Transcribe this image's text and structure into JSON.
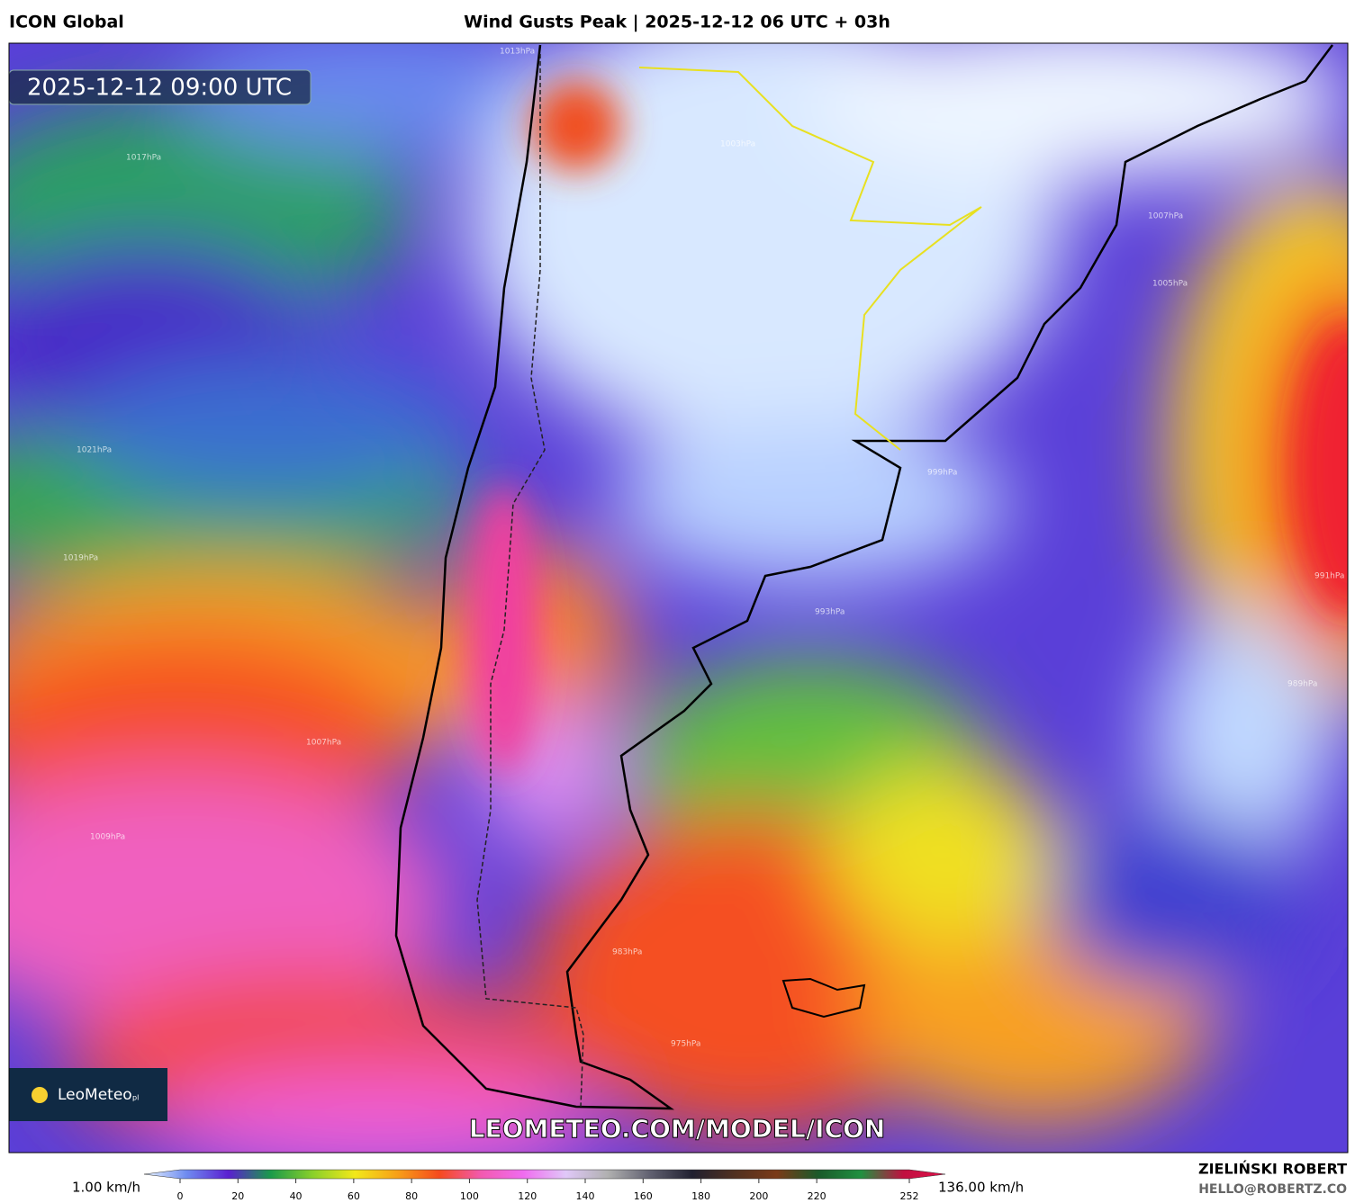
{
  "header": {
    "model": "ICON Global",
    "title": "Wind Gusts Peak | 2025-12-12 06 UTC + 03h"
  },
  "map": {
    "timestamp": "2025-12-12 09:00 UTC",
    "watermark": "LEOMETEO.COM/MODEL/ICON",
    "logo": "LeoMeteo",
    "logo_suffix": "pl",
    "isobar_labels": [
      "1013hPa",
      "1017hPa",
      "1021hPa",
      "1019hPa",
      "1007hPa",
      "1005hPa",
      "1003hPa",
      "999hPa",
      "993hPa",
      "991hPa",
      "989hPa",
      "983hPa",
      "975hPa",
      "1007hPa",
      "1009hPa"
    ]
  },
  "colorbar": {
    "min_label": "1.00 km/h",
    "max_label": "136.00 km/h",
    "ticks": [
      0,
      20,
      40,
      60,
      80,
      100,
      120,
      140,
      160,
      180,
      200,
      220,
      252
    ],
    "colors": [
      "#e8f4ff",
      "#6f8cf0",
      "#5a1fd0",
      "#1a9a4a",
      "#8ad02a",
      "#f2e81a",
      "#f7a018",
      "#f54a1e",
      "#f25ab0",
      "#f06cf0",
      "#e0c8f8",
      "#b0b0b0",
      "#606070",
      "#202030",
      "#503020",
      "#7a3a18",
      "#1a5a2a",
      "#209040",
      "#c01040",
      "#e0104a"
    ]
  },
  "footer": {
    "author": "ZIELIŃSKI ROBERT",
    "email": "HELLO@ROBERTZ.CO"
  }
}
